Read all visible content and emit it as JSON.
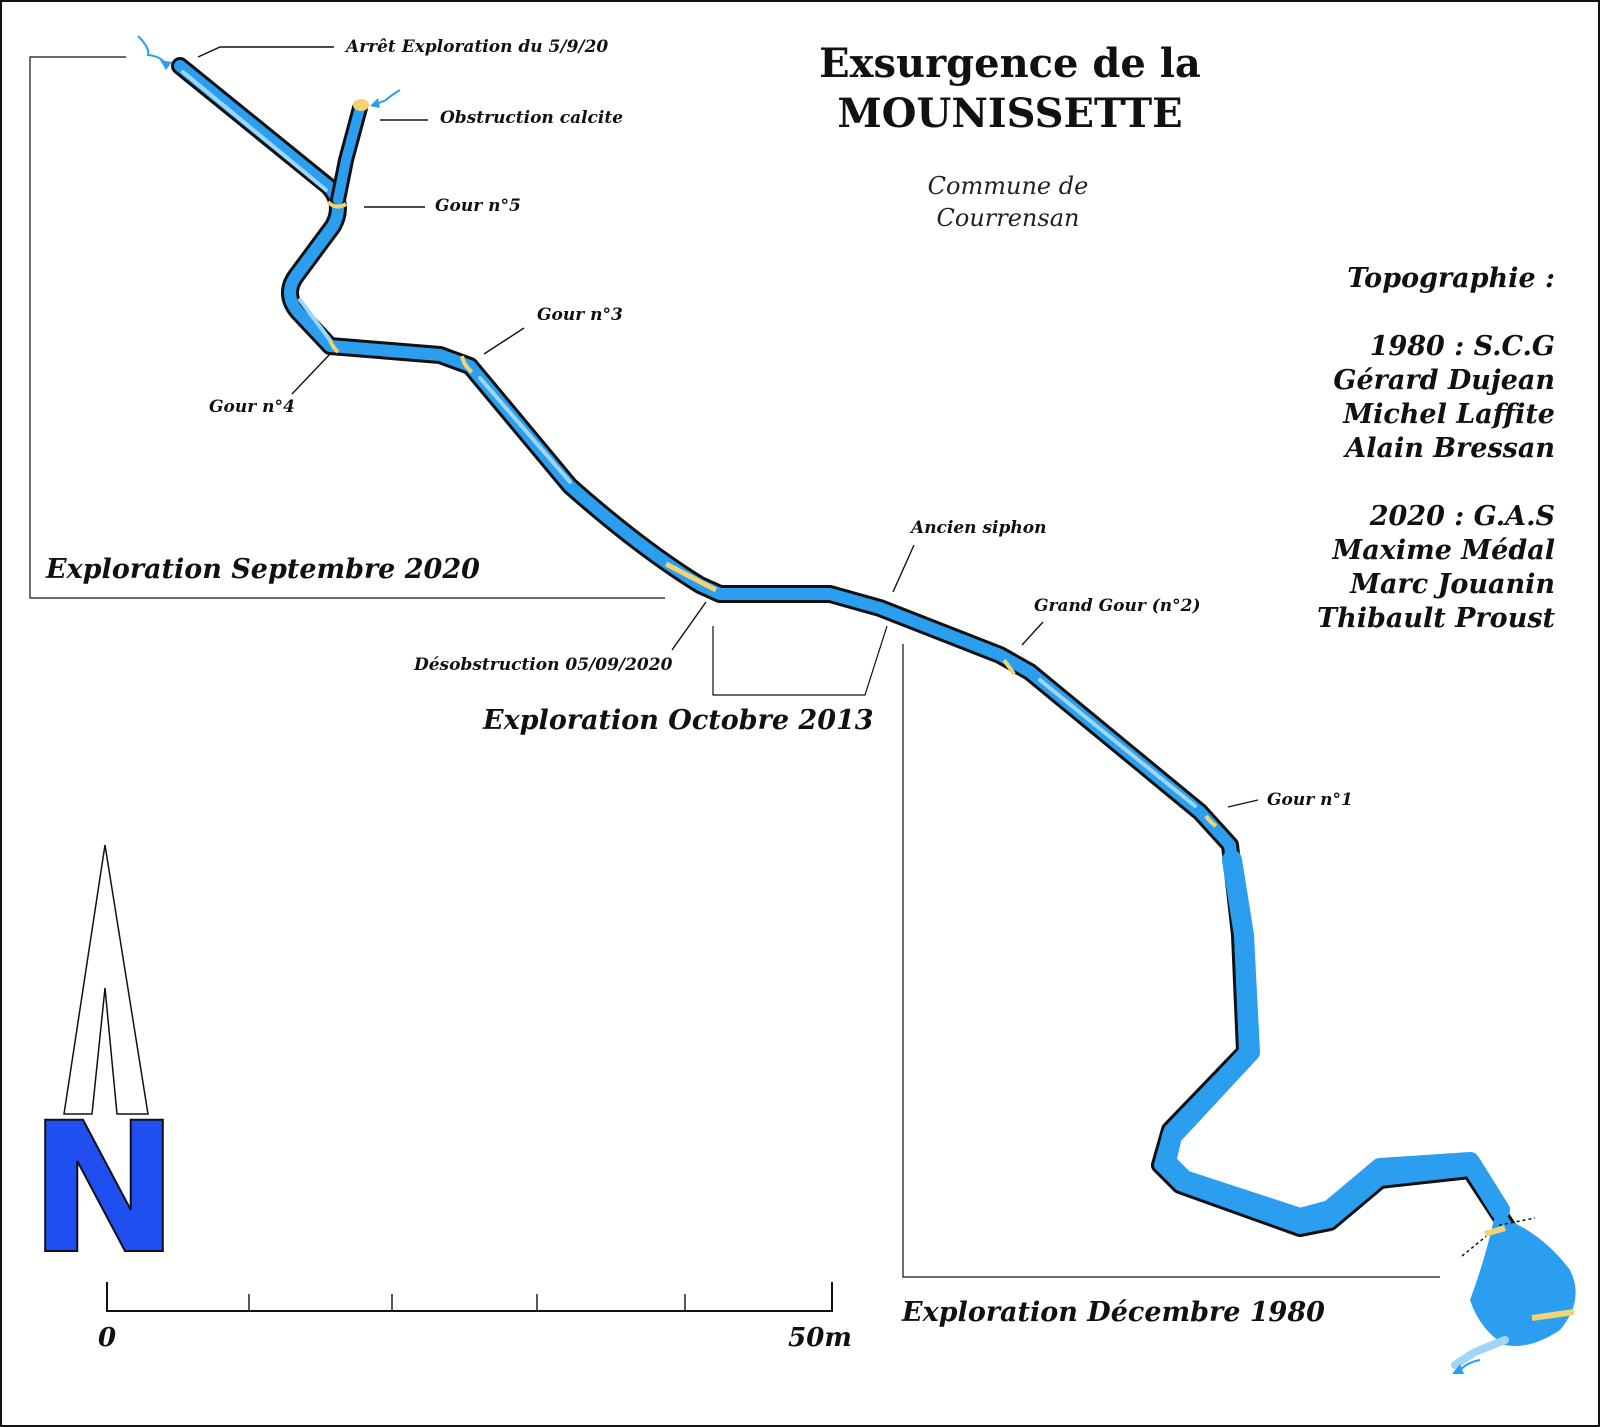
{
  "title": {
    "line1": "Exsurgence de la",
    "line2": "MOUNISSETTE"
  },
  "commune": {
    "line1": "Commune de",
    "line2": "Courrensan"
  },
  "topography": {
    "heading": "Topographie :",
    "team_1980": {
      "label": "1980 : S.C.G",
      "members": [
        "Gérard Dujean",
        "Michel Laffite",
        "Alain Bressan"
      ]
    },
    "team_2020": {
      "label": "2020 : G.A.S",
      "members": [
        "Maxime Médal",
        "Marc Jouanin",
        "Thibault Proust"
      ]
    }
  },
  "zones": {
    "sept_2020": "Exploration Septembre 2020",
    "oct_2013": "Exploration Octobre 2013",
    "dec_1980": "Exploration Décembre 1980"
  },
  "labels": {
    "arret": "Arrêt Exploration du 5/9/20",
    "obstruction": "Obstruction calcite",
    "gour5": "Gour n°5",
    "gour4": "Gour n°4",
    "gour3": "Gour n°3",
    "desobstruction": "Désobstruction 05/09/2020",
    "ancien_siphon": "Ancien siphon",
    "grand_gour": "Grand Gour (n°2)",
    "gour1": "Gour n°1"
  },
  "scale": {
    "start": "0",
    "end": "50m",
    "divisions": 5
  },
  "north": {
    "letter": "N"
  },
  "colors": {
    "water": "#2b9ef0",
    "water_light": "#9fd6f5",
    "gour": "#f1d376",
    "north_fill": "#1f4ff0",
    "outline": "#111111"
  }
}
